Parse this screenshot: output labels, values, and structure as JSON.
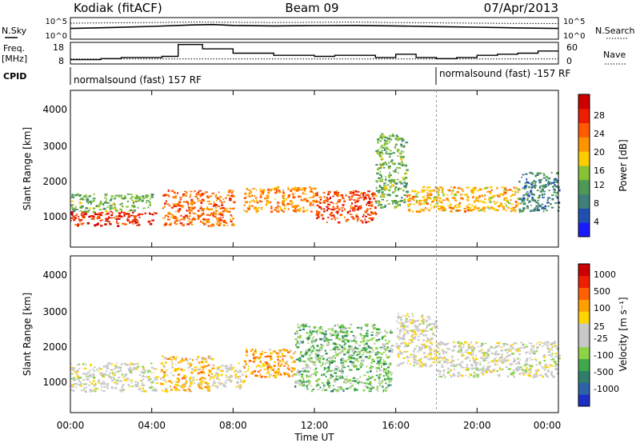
{
  "header": {
    "station": "Kodiak (fitACF)",
    "beam": "Beam 09",
    "date": "07/Apr/2013"
  },
  "sky_panel": {
    "left_label": "N.Sky",
    "right_label": "N.Search",
    "y_top_tick": "10^5",
    "y_bottom_tick": "10^0"
  },
  "freq_panel": {
    "left_label_line1": "Freq.",
    "left_label_line2": "[MHz]",
    "right_label": "Nave",
    "left_ticks": [
      "18",
      "8"
    ],
    "right_ticks": [
      "60",
      "0"
    ]
  },
  "cpid": {
    "label": "CPID",
    "segments": [
      {
        "start_hour": 0,
        "text": "normalsound (fast) 157 RF"
      },
      {
        "start_hour": 18,
        "text": "normalsound (fast) -157 RF"
      }
    ]
  },
  "x_axis": {
    "label": "Time UT",
    "ticks": [
      "00:00",
      "04:00",
      "08:00",
      "12:00",
      "16:00",
      "20:00",
      "00:00"
    ]
  },
  "power_panel": {
    "y_label": "Slant Range [km]",
    "y_ticks": [
      "1000",
      "2000",
      "3000",
      "4000"
    ],
    "colorbar_label": "Power [dB]",
    "colorbar_ticks": [
      "4",
      "8",
      "12",
      "16",
      "20",
      "24",
      "28"
    ],
    "colors": [
      "#1a1aff",
      "#1f4fb3",
      "#3f7f7a",
      "#4e9a55",
      "#86c233",
      "#ffcc00",
      "#ff9400",
      "#ff5a00",
      "#ee1d00",
      "#cc0000"
    ]
  },
  "velocity_panel": {
    "y_label": "Slant Range [km]",
    "y_ticks": [
      "1000",
      "2000",
      "3000",
      "4000"
    ],
    "colorbar_label": "Velocity [m s⁻¹]",
    "colorbar_ticks": [
      "-1000",
      "-500",
      "-100",
      "-25",
      "25",
      "100",
      "500",
      "1000"
    ],
    "colors": [
      "#1a2fc8",
      "#2c63a8",
      "#2f7f6a",
      "#3fa84a",
      "#8cd446",
      "#c8c8c8",
      "#c8c8c8",
      "#ffd400",
      "#ffa000",
      "#ff6000",
      "#ee2000",
      "#cc0000"
    ]
  },
  "chart_data": [
    {
      "type": "line",
      "title": "N.Sky / N.Search",
      "x_unit": "hours UT",
      "xlim": [
        0,
        24
      ],
      "y_scale": "log",
      "ylim": [
        1,
        100000
      ],
      "series": [
        {
          "name": "N.Sky",
          "style": "solid",
          "x": [
            0,
            2,
            4,
            6,
            7,
            8,
            10,
            12,
            14,
            16,
            18,
            20,
            22,
            24
          ],
          "y": [
            300,
            500,
            900,
            2000,
            2500,
            1500,
            1200,
            1400,
            1500,
            1200,
            800,
            600,
            400,
            300
          ]
        },
        {
          "name": "N.Search",
          "style": "dotted",
          "x": [
            0,
            2,
            4,
            6,
            8,
            10,
            12,
            14,
            16,
            18,
            20,
            22,
            24
          ],
          "y": [
            5000,
            6000,
            7000,
            9000,
            8000,
            7500,
            8000,
            9000,
            7000,
            6000,
            5000,
            4500,
            4000
          ]
        }
      ]
    },
    {
      "type": "line",
      "title": "Freq. / Nave",
      "x_unit": "hours UT",
      "xlim": [
        0,
        24
      ],
      "ylim": [
        8,
        18
      ],
      "series": [
        {
          "name": "Freq.",
          "style": "solid-step",
          "x": [
            0,
            1.5,
            2.5,
            4,
            4.5,
            5,
            5.3,
            6.5,
            8,
            10,
            12,
            13,
            15,
            16,
            17,
            18,
            19,
            20,
            21,
            22,
            23,
            24
          ],
          "y": [
            10,
            10.5,
            11,
            11,
            11.5,
            11.5,
            17,
            15,
            13,
            12,
            11.5,
            12,
            11,
            12.5,
            11,
            10.5,
            11,
            12,
            12.5,
            13,
            14,
            14
          ]
        },
        {
          "name": "Nave",
          "style": "dotted",
          "x": [
            0,
            24
          ],
          "y": [
            10.3,
            10.3
          ]
        }
      ]
    },
    {
      "type": "heatmap",
      "title": "Power [dB]",
      "x_unit": "hours UT",
      "y_unit": "Slant Range [km]",
      "xlim": [
        0,
        24
      ],
      "ylim": [
        180,
        4600
      ],
      "zlim": [
        0,
        30
      ],
      "bands": [
        {
          "t": [
            0,
            4.2
          ],
          "r": [
            800,
            1200
          ],
          "level": 26
        },
        {
          "t": [
            0,
            4
          ],
          "r": [
            1200,
            1700
          ],
          "level": 12
        },
        {
          "t": [
            4.5,
            8
          ],
          "r": [
            800,
            1800
          ],
          "level": 22
        },
        {
          "t": [
            8.5,
            12
          ],
          "r": [
            1200,
            1900
          ],
          "level": 20
        },
        {
          "t": [
            12,
            15
          ],
          "r": [
            900,
            1800
          ],
          "level": 24
        },
        {
          "t": [
            15,
            16.5
          ],
          "r": [
            1300,
            3400
          ],
          "level": 12
        },
        {
          "t": [
            16.5,
            22
          ],
          "r": [
            1200,
            1900
          ],
          "level": 18
        },
        {
          "t": [
            22,
            24
          ],
          "r": [
            1200,
            2300
          ],
          "level": 8
        }
      ]
    },
    {
      "type": "heatmap",
      "title": "Velocity [m s⁻¹]",
      "x_unit": "hours UT",
      "y_unit": "Slant Range [km]",
      "xlim": [
        0,
        24
      ],
      "ylim": [
        180,
        4600
      ],
      "zlim": [
        -1000,
        1000
      ],
      "bands": [
        {
          "t": [
            0,
            4.2
          ],
          "r": [
            800,
            1600
          ],
          "level": 0
        },
        {
          "t": [
            4.4,
            7
          ],
          "r": [
            800,
            1800
          ],
          "level": 300
        },
        {
          "t": [
            7,
            8.5
          ],
          "r": [
            900,
            1600
          ],
          "level": 80
        },
        {
          "t": [
            8.5,
            11
          ],
          "r": [
            1200,
            2000
          ],
          "level": 400
        },
        {
          "t": [
            11,
            15.8
          ],
          "r": [
            800,
            2700
          ],
          "level": -300
        },
        {
          "t": [
            16,
            18
          ],
          "r": [
            1500,
            3000
          ],
          "level": 60
        },
        {
          "t": [
            18,
            24
          ],
          "r": [
            1200,
            2200
          ],
          "level": 0
        }
      ]
    }
  ]
}
